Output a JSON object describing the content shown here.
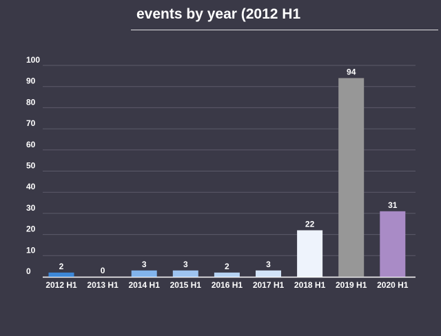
{
  "title": "events by year (2012 H1",
  "chart_data": {
    "type": "bar",
    "title": "events by year (2012 H1",
    "categories": [
      "2012 H1",
      "2013 H1",
      "2014 H1",
      "2015 H1",
      "2016 H1",
      "2017 H1",
      "2018 H1",
      "2019 H1",
      "2020 H1"
    ],
    "values": [
      2,
      0,
      3,
      3,
      2,
      3,
      22,
      94,
      31
    ],
    "colors": [
      "#3d88d8",
      "#5a9be0",
      "#82b4ec",
      "#9ec4f0",
      "#b6d3f3",
      "#d2e3f8",
      "#eef3fc",
      "#979797",
      "#a98bc6"
    ],
    "yticks": [
      0,
      10,
      20,
      30,
      40,
      50,
      60,
      70,
      80,
      90,
      100
    ],
    "ylim": [
      0,
      100
    ],
    "grid": true,
    "show_value_labels": true
  }
}
